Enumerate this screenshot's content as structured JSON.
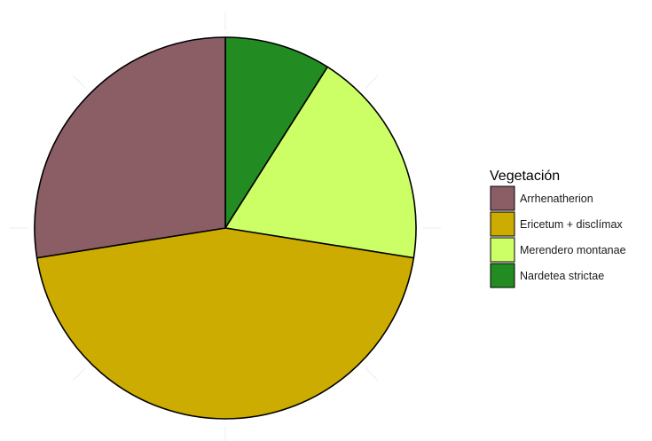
{
  "chart_data": {
    "type": "pie",
    "title": "",
    "categories": [
      "Arrhenatherion",
      "Ericetum + disclímax",
      "Merendero montanae",
      "Nardetea strictae"
    ],
    "values": [
      27.5,
      45.0,
      18.5,
      9.0
    ],
    "colors": [
      "#8B5E66",
      "#CCAC00",
      "#CCFF66",
      "#228B22"
    ],
    "start_angle_deg": 0,
    "direction": "clockwise",
    "legend": {
      "title": "Vegetación",
      "placement": "right"
    },
    "grid": true
  }
}
